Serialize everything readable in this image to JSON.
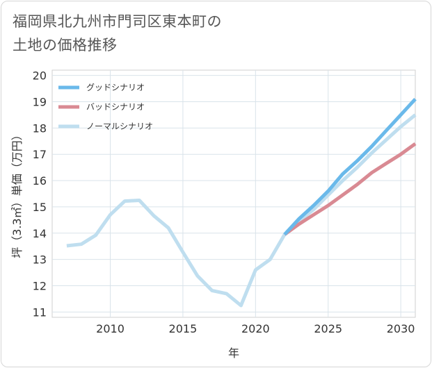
{
  "title_line1": "福岡県北九州市門司区東本町の",
  "title_line2": "土地の価格推移",
  "chart_data": {
    "type": "line",
    "xlabel": "年",
    "ylabel": "坪（3.3㎡）単価（万円）",
    "xlim": [
      2006,
      2031
    ],
    "ylim": [
      10.8,
      20.2
    ],
    "xticks": [
      2010,
      2015,
      2020,
      2025,
      2030
    ],
    "yticks": [
      11,
      12,
      13,
      14,
      15,
      16,
      17,
      18,
      19,
      20
    ],
    "legend_position": "top-left",
    "series": [
      {
        "name": "グッドシナリオ",
        "color": "#6ab9ea",
        "x": [
          2022,
          2023,
          2024,
          2025,
          2026,
          2027,
          2028,
          2029,
          2030,
          2031
        ],
        "y": [
          13.95,
          14.55,
          15.05,
          15.6,
          16.25,
          16.75,
          17.3,
          17.9,
          18.5,
          19.1
        ]
      },
      {
        "name": "バッドシナリオ",
        "color": "#d98a93",
        "x": [
          2022,
          2023,
          2024,
          2025,
          2026,
          2027,
          2028,
          2029,
          2030,
          2031
        ],
        "y": [
          13.95,
          14.35,
          14.7,
          15.05,
          15.45,
          15.85,
          16.3,
          16.65,
          17.0,
          17.4
        ]
      },
      {
        "name": "ノーマルシナリオ",
        "color": "#bfdeef",
        "x": [
          2007,
          2008,
          2009,
          2010,
          2011,
          2012,
          2013,
          2014,
          2015,
          2016,
          2017,
          2018,
          2019,
          2020,
          2021,
          2022,
          2023,
          2024,
          2025,
          2026,
          2027,
          2028,
          2029,
          2030,
          2031
        ],
        "y": [
          13.52,
          13.58,
          13.92,
          14.7,
          15.22,
          15.25,
          14.66,
          14.2,
          13.28,
          12.38,
          11.82,
          11.7,
          11.25,
          12.6,
          13.0,
          13.95,
          14.45,
          14.9,
          15.45,
          16.0,
          16.5,
          17.05,
          17.55,
          18.05,
          18.5
        ]
      }
    ]
  }
}
